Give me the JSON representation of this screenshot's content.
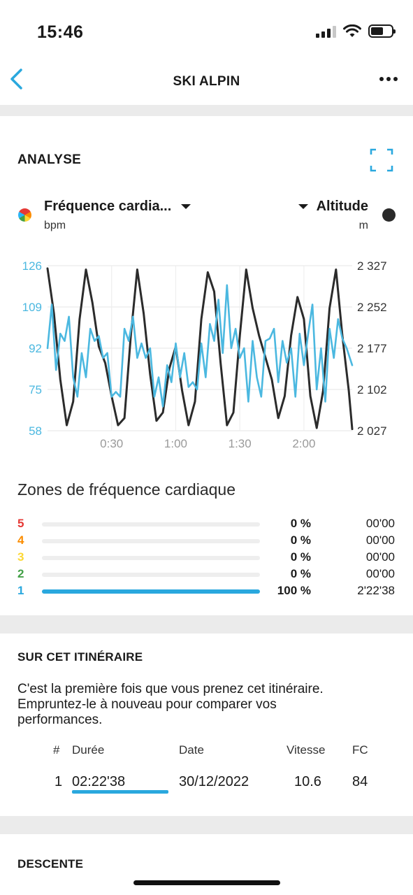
{
  "status": {
    "time": "15:46"
  },
  "nav": {
    "title": "SKI ALPIN"
  },
  "analyse": {
    "title": "ANALYSE",
    "left_metric": "Fréquence cardia...",
    "left_unit": "bpm",
    "right_metric": "Altitude",
    "right_unit": "m"
  },
  "chart_data": {
    "type": "line",
    "x_ticks": [
      "0:30",
      "1:00",
      "1:30",
      "2:00"
    ],
    "x_tick_seconds": [
      30,
      60,
      90,
      120
    ],
    "x_range_seconds": [
      0,
      142.6
    ],
    "left_axis": {
      "ticks": [
        "126",
        "109",
        "92",
        "75",
        "58"
      ],
      "range": [
        58,
        126
      ],
      "color": "#4bb8e0"
    },
    "right_axis": {
      "ticks": [
        "2 327",
        "2 252",
        "2 177",
        "2 102",
        "2 027"
      ],
      "range": [
        2027,
        2327
      ],
      "color": "#333333"
    },
    "series": [
      {
        "axis": "right",
        "color": "#2b2b2b",
        "x": [
          0,
          3,
          6,
          9,
          12,
          15,
          18,
          21,
          24,
          27,
          30,
          33,
          36,
          39,
          42,
          45,
          48,
          51,
          54,
          57,
          60,
          63,
          66,
          69,
          72,
          75,
          78,
          81,
          84,
          87,
          90,
          93,
          96,
          99,
          102,
          105,
          108,
          111,
          114,
          117,
          120,
          123,
          126,
          129,
          132,
          135,
          138,
          141,
          142.6
        ],
        "y": [
          2322,
          2240,
          2120,
          2037,
          2080,
          2230,
          2320,
          2260,
          2180,
          2150,
          2090,
          2037,
          2050,
          2200,
          2320,
          2240,
          2130,
          2045,
          2060,
          2140,
          2180,
          2100,
          2037,
          2080,
          2230,
          2315,
          2280,
          2150,
          2037,
          2060,
          2200,
          2320,
          2250,
          2200,
          2160,
          2120,
          2050,
          2090,
          2200,
          2270,
          2230,
          2090,
          2032,
          2100,
          2250,
          2320,
          2200,
          2100,
          2030
        ]
      },
      {
        "axis": "left",
        "color": "#4bb8e0",
        "x": [
          0,
          2,
          4,
          6,
          8,
          10,
          12,
          14,
          16,
          18,
          20,
          22,
          24,
          26,
          28,
          30,
          32,
          34,
          36,
          38,
          40,
          42,
          44,
          46,
          48,
          50,
          52,
          54,
          56,
          58,
          60,
          62,
          64,
          66,
          68,
          70,
          72,
          74,
          76,
          78,
          80,
          82,
          84,
          86,
          88,
          90,
          92,
          94,
          96,
          98,
          100,
          102,
          104,
          106,
          108,
          110,
          112,
          114,
          116,
          118,
          120,
          122,
          124,
          126,
          128,
          130,
          132,
          134,
          136,
          138,
          140,
          142.6
        ],
        "y": [
          92,
          110,
          83,
          98,
          95,
          105,
          80,
          72,
          90,
          80,
          100,
          95,
          97,
          88,
          90,
          72,
          74,
          72,
          100,
          95,
          105,
          88,
          94,
          88,
          92,
          72,
          80,
          68,
          85,
          78,
          94,
          80,
          90,
          76,
          78,
          75,
          94,
          80,
          102,
          95,
          112,
          90,
          118,
          92,
          100,
          88,
          92,
          70,
          95,
          80,
          72,
          95,
          96,
          100,
          78,
          95,
          86,
          92,
          72,
          98,
          85,
          98,
          110,
          75,
          92,
          70,
          100,
          88,
          104,
          96,
          92,
          85
        ]
      }
    ]
  },
  "zones": {
    "title": "Zones de fréquence cardiaque",
    "rows": [
      {
        "zone": "5",
        "percent": "0 %",
        "time": "00'00",
        "fraction": 0,
        "color": "#e53935"
      },
      {
        "zone": "4",
        "percent": "0 %",
        "time": "00'00",
        "fraction": 0,
        "color": "#fb8c00"
      },
      {
        "zone": "3",
        "percent": "0 %",
        "time": "00'00",
        "fraction": 0,
        "color": "#fdd835"
      },
      {
        "zone": "2",
        "percent": "0 %",
        "time": "00'00",
        "fraction": 0,
        "color": "#43a047"
      },
      {
        "zone": "1",
        "percent": "100 %",
        "time": "2'22'38",
        "fraction": 1,
        "color": "#2aa8de"
      }
    ]
  },
  "route": {
    "title": "SUR CET ITINÉRAIRE",
    "line1": "C'est la première fois que vous prenez cet itinéraire.",
    "line2": "Empruntez-le à nouveau pour comparer vos",
    "line3": "performances.",
    "headers": {
      "num": "#",
      "duration": "Durée",
      "date": "Date",
      "speed": "Vitesse",
      "hr": "FC"
    },
    "row": {
      "num": "1",
      "duration": "02:22'38",
      "date": "30/12/2022",
      "speed": "10.6",
      "hr": "84"
    }
  },
  "descente": {
    "title": "DESCENTE"
  }
}
